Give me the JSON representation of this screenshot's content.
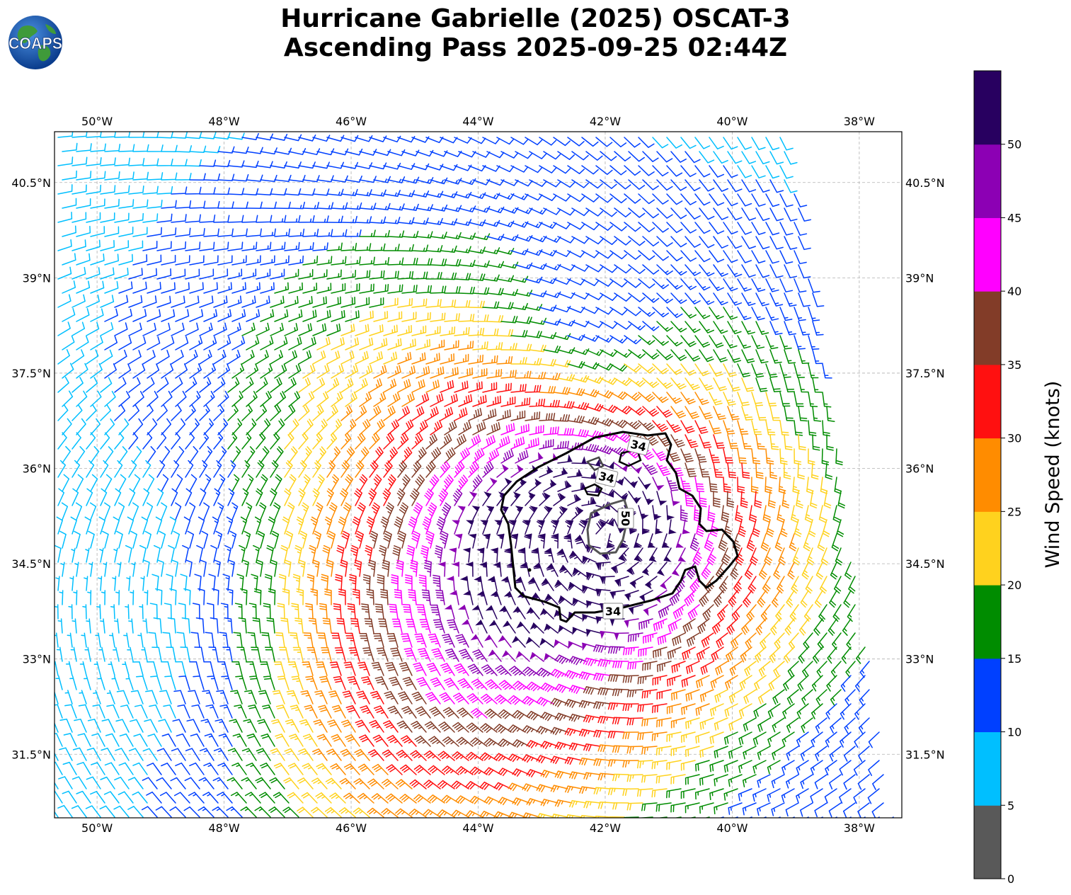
{
  "title": {
    "line1": "Hurricane Gabrielle (2025) OSCAT-3",
    "line2": "Ascending Pass 2025-09-25 02:44Z"
  },
  "logo": {
    "text": "COAPS",
    "icon": "globe-icon"
  },
  "map": {
    "lon_ticks": [
      "50°W",
      "48°W",
      "46°W",
      "44°W",
      "42°W",
      "40°W",
      "38°W"
    ],
    "lat_ticks": [
      "40.5°N",
      "39°N",
      "37.5°N",
      "36°N",
      "34.5°N",
      "33°N",
      "31.5°N"
    ],
    "lon_range": [
      -50.67,
      -37.33
    ],
    "lat_range": [
      30.5,
      41.3
    ],
    "gridlines": true,
    "storm_center": {
      "lon": -42.1,
      "lat": 34.95
    },
    "barb_field": "cyclonic vortex of wind barbs, colored by speed",
    "contours": [
      {
        "label": "34",
        "level_kt": 34
      },
      {
        "label": "34",
        "level_kt": 34
      },
      {
        "label": "34",
        "level_kt": 34
      },
      {
        "label": "50",
        "level_kt": 50
      }
    ]
  },
  "colorbar": {
    "label": "Wind Speed (knots)",
    "ticks": [
      "0",
      "5",
      "10",
      "15",
      "20",
      "25",
      "30",
      "35",
      "40",
      "45",
      "50"
    ],
    "bins": [
      {
        "min": 0,
        "max": 5,
        "color": "#595959"
      },
      {
        "min": 5,
        "max": 10,
        "color": "#00bfff"
      },
      {
        "min": 10,
        "max": 15,
        "color": "#0040ff"
      },
      {
        "min": 15,
        "max": 20,
        "color": "#008c00"
      },
      {
        "min": 20,
        "max": 25,
        "color": "#ffd21e"
      },
      {
        "min": 25,
        "max": 30,
        "color": "#ff8c00"
      },
      {
        "min": 30,
        "max": 35,
        "color": "#ff1010"
      },
      {
        "min": 35,
        "max": 40,
        "color": "#823c28"
      },
      {
        "min": 40,
        "max": 45,
        "color": "#ff00ff"
      },
      {
        "min": 45,
        "max": 50,
        "color": "#8c00b4"
      },
      {
        "min": 50,
        "max": 55,
        "color": "#280060"
      }
    ]
  }
}
